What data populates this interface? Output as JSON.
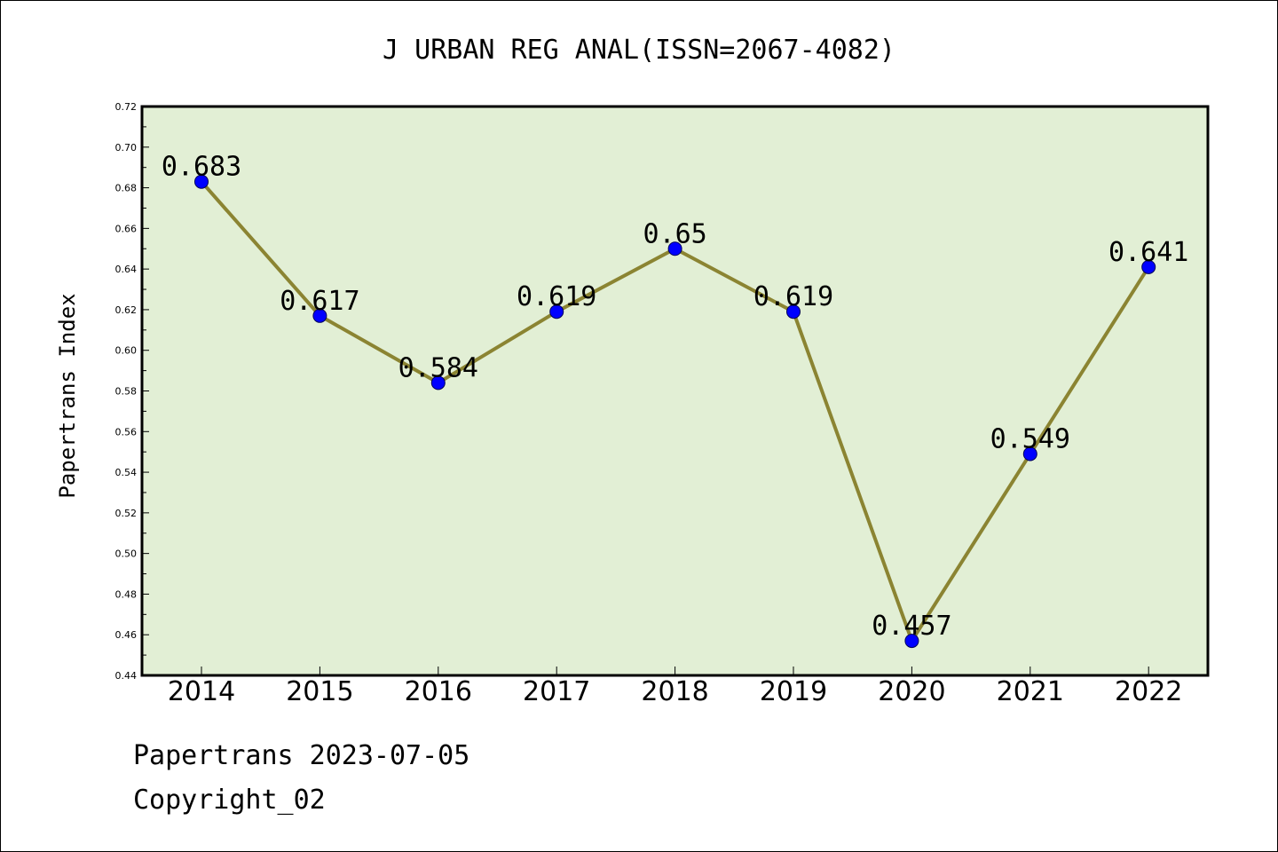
{
  "chart_data": {
    "type": "line",
    "title": "J URBAN REG ANAL(ISSN=2067-4082)",
    "xlabel": "",
    "ylabel": "Papertrans Index",
    "categories": [
      "2014",
      "2015",
      "2016",
      "2017",
      "2018",
      "2019",
      "2020",
      "2021",
      "2022"
    ],
    "series": [
      {
        "values": [
          0.683,
          0.617,
          0.584,
          0.619,
          0.65,
          0.619,
          0.457,
          0.549,
          0.641
        ],
        "labels": [
          "0.683",
          "0.617",
          "0.584",
          "0.619",
          "0.65",
          "0.619",
          "0.457",
          "0.549",
          "0.641"
        ],
        "line_color": "#8b8432",
        "marker_color": "#0000ff"
      }
    ],
    "ylim": [
      0.44,
      0.72
    ],
    "yticks": [
      "0.44",
      "0.46",
      "0.48",
      "0.50",
      "0.52",
      "0.54",
      "0.56",
      "0.58",
      "0.60",
      "0.62",
      "0.64",
      "0.66",
      "0.68",
      "0.70",
      "0.72"
    ],
    "plot_background": "#e2efd5",
    "grid": false,
    "legend": "none"
  },
  "footer": {
    "line1": "Papertrans 2023-07-05",
    "line2": "Copyright_02"
  }
}
